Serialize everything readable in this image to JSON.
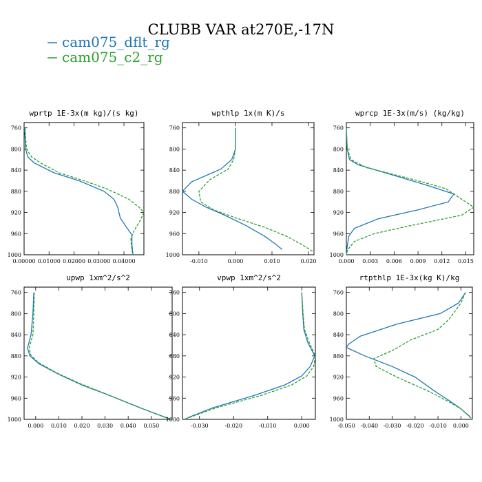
{
  "figure": {
    "title": "CLUBB VAR at270E,-17N",
    "legend": [
      {
        "label": "cam075_dflt_rg",
        "color": "#1f77b4",
        "dash": "solid"
      },
      {
        "label": "cam075_c2_rg",
        "color": "#2ca02c",
        "dash": "dashed"
      }
    ]
  },
  "chart_data": [
    {
      "type": "line",
      "title": "wprtp  1E-3x(m kg)/(s kg)",
      "xlim": [
        0.0,
        0.048
      ],
      "ylim": [
        1000,
        750
      ],
      "yticks": [
        760,
        800,
        840,
        880,
        920,
        960,
        1000
      ],
      "xticks": [
        0.0,
        0.01,
        0.02,
        0.03,
        0.04
      ],
      "xtick_labels": [
        "0.00000",
        "0.01000",
        "0.02000",
        "0.03000",
        "0.04000"
      ],
      "series": [
        {
          "name": "cam075_dflt_rg",
          "color": "#1f77b4",
          "points": [
            [
              0.0002,
              760
            ],
            [
              0.0004,
              780
            ],
            [
              0.0006,
              800
            ],
            [
              0.0015,
              815
            ],
            [
              0.004,
              826
            ],
            [
              0.012,
              845
            ],
            [
              0.022,
              860
            ],
            [
              0.032,
              880
            ],
            [
              0.036,
              895
            ],
            [
              0.0375,
              910
            ],
            [
              0.0385,
              930
            ],
            [
              0.041,
              948
            ],
            [
              0.0432,
              962
            ],
            [
              0.0432,
              980
            ],
            [
              0.0436,
              1000
            ]
          ]
        },
        {
          "name": "cam075_c2_rg",
          "color": "#2ca02c",
          "points": [
            [
              0.0004,
              760
            ],
            [
              0.0006,
              780
            ],
            [
              0.001,
              800
            ],
            [
              0.003,
              815
            ],
            [
              0.0065,
              826
            ],
            [
              0.014,
              845
            ],
            [
              0.024,
              860
            ],
            [
              0.033,
              875
            ],
            [
              0.042,
              895
            ],
            [
              0.046,
              910
            ],
            [
              0.048,
              920
            ],
            [
              0.0465,
              935
            ],
            [
              0.044,
              955
            ],
            [
              0.0428,
              970
            ],
            [
              0.043,
              985
            ],
            [
              0.0435,
              1000
            ]
          ]
        }
      ]
    },
    {
      "type": "line",
      "title": "wpthlp  1x(m K)/s",
      "xlim": [
        -0.0145,
        0.0215
      ],
      "ylim": [
        1000,
        750
      ],
      "yticks": [
        760,
        800,
        840,
        880,
        920,
        960,
        1000
      ],
      "xticks": [
        -0.01,
        0.0,
        0.01,
        0.02
      ],
      "xtick_labels": [
        "-0.010",
        "0.000",
        "0.010",
        "0.020"
      ],
      "series": [
        {
          "name": "cam075_dflt_rg",
          "color": "#1f77b4",
          "points": [
            [
              0.0,
              760
            ],
            [
              0.0,
              800
            ],
            [
              -0.001,
              820
            ],
            [
              -0.004,
              838
            ],
            [
              -0.012,
              862
            ],
            [
              -0.0145,
              880
            ],
            [
              -0.012,
              895
            ],
            [
              -0.008,
              910
            ],
            [
              -0.003,
              925
            ],
            [
              0.003,
              945
            ],
            [
              0.008,
              965
            ],
            [
              0.011,
              980
            ],
            [
              0.0128,
              990
            ]
          ]
        },
        {
          "name": "cam075_c2_rg",
          "color": "#2ca02c",
          "points": [
            [
              0.0,
              760
            ],
            [
              0.0,
              800
            ],
            [
              -0.0005,
              820
            ],
            [
              -0.002,
              838
            ],
            [
              -0.007,
              858
            ],
            [
              -0.01,
              880
            ],
            [
              -0.0095,
              900
            ],
            [
              -0.006,
              915
            ],
            [
              0.0,
              930
            ],
            [
              0.008,
              948
            ],
            [
              0.014,
              965
            ],
            [
              0.018,
              980
            ],
            [
              0.0215,
              995
            ]
          ]
        }
      ]
    },
    {
      "type": "line",
      "title": "wprcp  1E-3x(m/s) (kg/kg)",
      "xlim": [
        0.0,
        0.016
      ],
      "ylim": [
        1000,
        750
      ],
      "yticks": [
        760,
        800,
        840,
        880,
        920,
        960,
        1000
      ],
      "xticks": [
        0.0,
        0.003,
        0.006,
        0.009,
        0.012,
        0.015
      ],
      "xtick_labels": [
        "0.000",
        "0.003",
        "0.006",
        "0.009",
        "0.012",
        "0.015"
      ],
      "series": [
        {
          "name": "cam075_dflt_rg",
          "color": "#1f77b4",
          "points": [
            [
              0.0,
              760
            ],
            [
              0.0001,
              800
            ],
            [
              0.0004,
              820
            ],
            [
              0.0015,
              830
            ],
            [
              0.006,
              850
            ],
            [
              0.01,
              868
            ],
            [
              0.0135,
              885
            ],
            [
              0.0128,
              900
            ],
            [
              0.009,
              915
            ],
            [
              0.004,
              932
            ],
            [
              0.001,
              950
            ],
            [
              0.0003,
              965
            ],
            [
              0.0001,
              985
            ],
            [
              0.0,
              1000
            ]
          ]
        },
        {
          "name": "cam075_c2_rg",
          "color": "#2ca02c",
          "points": [
            [
              0.0,
              760
            ],
            [
              0.0001,
              800
            ],
            [
              0.0006,
              820
            ],
            [
              0.0025,
              835
            ],
            [
              0.0085,
              858
            ],
            [
              0.0125,
              875
            ],
            [
              0.016,
              910
            ],
            [
              0.0145,
              925
            ],
            [
              0.008,
              945
            ],
            [
              0.0035,
              960
            ],
            [
              0.001,
              975
            ],
            [
              0.0002,
              990
            ],
            [
              0.0,
              1000
            ]
          ]
        }
      ]
    },
    {
      "type": "line",
      "title": "upwp  1xm^2/s^2",
      "xlim": [
        -0.005,
        0.059
      ],
      "ylim": [
        1000,
        750
      ],
      "yticks": [
        760,
        800,
        840,
        880,
        920,
        960,
        1000
      ],
      "xticks": [
        0.0,
        0.01,
        0.02,
        0.03,
        0.04,
        0.05
      ],
      "xtick_labels": [
        "0.000",
        "0.010",
        "0.020",
        "0.030",
        "0.040",
        "0.050"
      ],
      "series": [
        {
          "name": "cam075_dflt_rg",
          "color": "#1f77b4",
          "points": [
            [
              -0.0008,
              760
            ],
            [
              -0.0012,
              800
            ],
            [
              -0.002,
              840
            ],
            [
              -0.0035,
              865
            ],
            [
              -0.0025,
              880
            ],
            [
              0.0015,
              895
            ],
            [
              0.01,
              915
            ],
            [
              0.02,
              935
            ],
            [
              0.032,
              955
            ],
            [
              0.045,
              978
            ],
            [
              0.0585,
              1000
            ]
          ]
        },
        {
          "name": "cam075_c2_rg",
          "color": "#2ca02c",
          "points": [
            [
              -0.0006,
              760
            ],
            [
              -0.0008,
              800
            ],
            [
              -0.0012,
              840
            ],
            [
              -0.0028,
              865
            ],
            [
              -0.0022,
              878
            ],
            [
              0.001,
              892
            ],
            [
              0.009,
              912
            ],
            [
              0.019,
              932
            ],
            [
              0.031,
              953
            ],
            [
              0.044,
              976
            ],
            [
              0.057,
              998
            ]
          ]
        }
      ]
    },
    {
      "type": "line",
      "title": "vpwp  1xm^2/s^2",
      "xlim": [
        -0.035,
        0.004
      ],
      "ylim": [
        1000,
        750
      ],
      "yticks": [
        760,
        800,
        840,
        880,
        920,
        960,
        1000
      ],
      "xticks": [
        -0.03,
        -0.02,
        -0.01,
        0.0
      ],
      "xtick_labels": [
        "-0.030",
        "-0.020",
        "-0.010",
        "0.000"
      ],
      "series": [
        {
          "name": "cam075_dflt_rg",
          "color": "#1f77b4",
          "points": [
            [
              0.0,
              760
            ],
            [
              0.0003,
              800
            ],
            [
              0.0006,
              830
            ],
            [
              0.0018,
              855
            ],
            [
              0.0038,
              880
            ],
            [
              0.0025,
              900
            ],
            [
              0.0,
              918
            ],
            [
              -0.005,
              935
            ],
            [
              -0.014,
              955
            ],
            [
              -0.026,
              978
            ],
            [
              -0.0335,
              997
            ]
          ]
        },
        {
          "name": "cam075_c2_rg",
          "color": "#2ca02c",
          "points": [
            [
              0.0,
              760
            ],
            [
              0.0004,
              800
            ],
            [
              0.0008,
              830
            ],
            [
              0.0022,
              855
            ],
            [
              0.004,
              880
            ],
            [
              0.0035,
              900
            ],
            [
              0.0015,
              918
            ],
            [
              -0.003,
              935
            ],
            [
              -0.012,
              955
            ],
            [
              -0.025,
              978
            ],
            [
              -0.0345,
              1000
            ]
          ]
        }
      ]
    },
    {
      "type": "line",
      "title": "rtpthlp  1E-3x(kg K)/kg",
      "xlim": [
        -0.05,
        0.005
      ],
      "ylim": [
        1000,
        750
      ],
      "yticks": [
        760,
        800,
        840,
        880,
        920,
        960,
        1000
      ],
      "xticks": [
        -0.05,
        -0.04,
        -0.03,
        -0.02,
        -0.01,
        0.0
      ],
      "xtick_labels": [
        "-0.050",
        "-0.040",
        "-0.030",
        "-0.020",
        "-0.010",
        "0.000"
      ],
      "series": [
        {
          "name": "cam075_dflt_rg",
          "color": "#1f77b4",
          "points": [
            [
              0.002,
              760
            ],
            [
              -0.001,
              780
            ],
            [
              -0.009,
              800
            ],
            [
              -0.028,
              820
            ],
            [
              -0.044,
              843
            ],
            [
              -0.049,
              858
            ],
            [
              -0.05,
              864
            ],
            [
              -0.042,
              880
            ],
            [
              -0.03,
              900
            ],
            [
              -0.02,
              920
            ],
            [
              -0.012,
              945
            ],
            [
              -0.005,
              965
            ],
            [
              0.0,
              980
            ],
            [
              0.004,
              995
            ]
          ]
        },
        {
          "name": "cam075_c2_rg",
          "color": "#2ca02c",
          "points": [
            [
              0.002,
              760
            ],
            [
              0.0,
              780
            ],
            [
              -0.005,
              810
            ],
            [
              -0.01,
              830
            ],
            [
              -0.022,
              850
            ],
            [
              -0.03,
              870
            ],
            [
              -0.038,
              885
            ],
            [
              -0.037,
              900
            ],
            [
              -0.028,
              920
            ],
            [
              -0.015,
              945
            ],
            [
              -0.006,
              965
            ],
            [
              0.0,
              980
            ],
            [
              0.005,
              1000
            ]
          ]
        }
      ]
    }
  ]
}
